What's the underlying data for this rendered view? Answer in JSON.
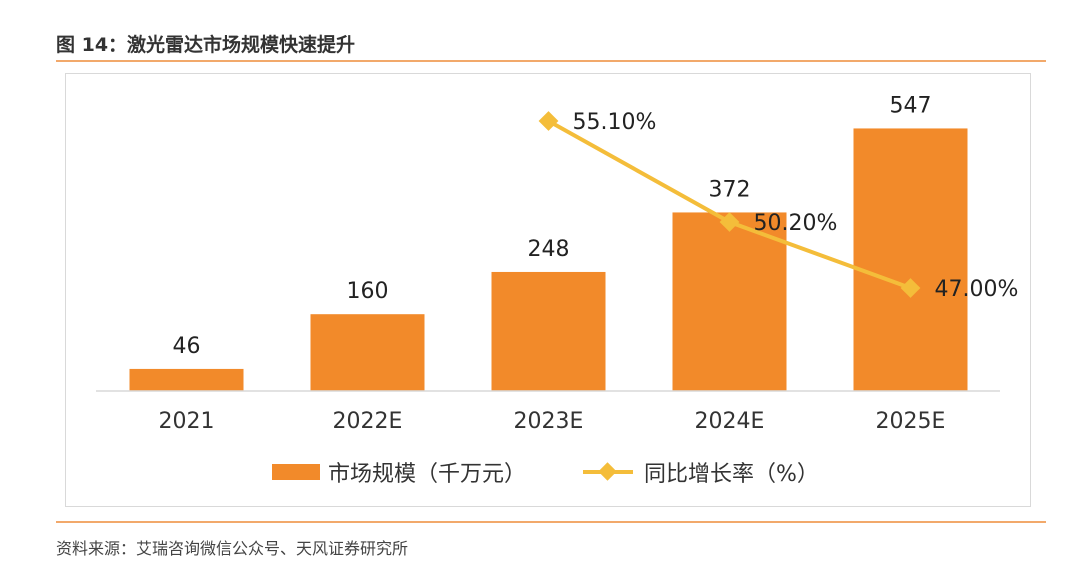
{
  "figure": {
    "title": "图 14：激光雷达市场规模快速提升",
    "source": "资料来源：艾瑞咨询微信公众号、天风证券研究所"
  },
  "colors": {
    "bar": "#f28a2a",
    "line": "#f4bd3a",
    "rule": "#f2a96b"
  },
  "chart_data": {
    "type": "bar",
    "categories": [
      "2021",
      "2022E",
      "2023E",
      "2024E",
      "2025E"
    ],
    "series": [
      {
        "name": "市场规模（千万元）",
        "type": "bar",
        "values": [
          46,
          160,
          248,
          372,
          547
        ],
        "labels": [
          "46",
          "160",
          "248",
          "372",
          "547"
        ]
      },
      {
        "name": "同比增长率（%）",
        "type": "line",
        "values": [
          null,
          null,
          55.1,
          50.2,
          47.0
        ],
        "labels": [
          "",
          "",
          "55.10%",
          "50.20%",
          "47.00%"
        ]
      }
    ],
    "legend_position": "bottom",
    "grid": false
  }
}
